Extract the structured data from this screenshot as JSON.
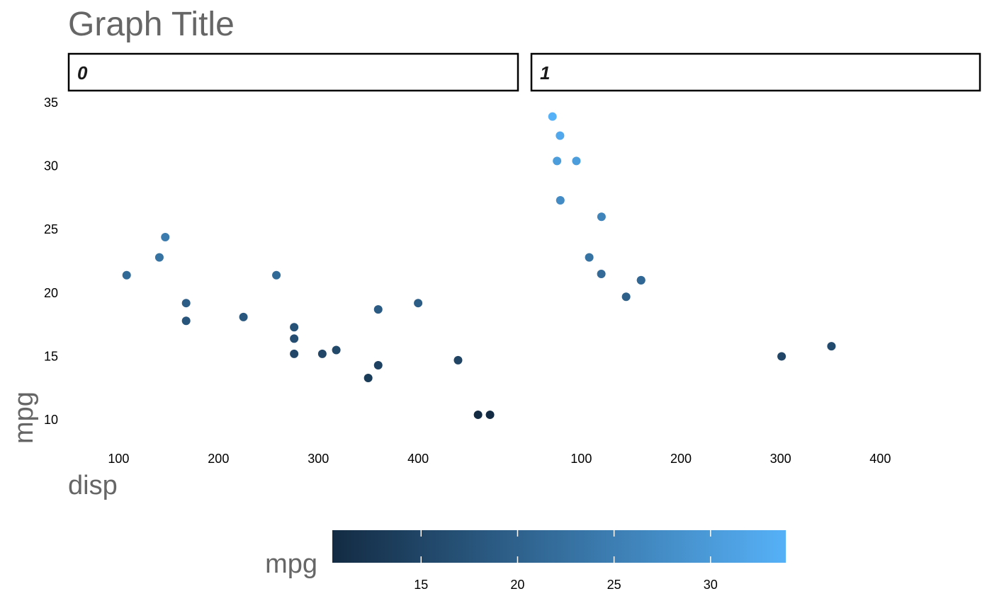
{
  "chart_data": {
    "type": "scatter",
    "title": "Graph Title",
    "xlabel": "disp",
    "ylabel": "mpg",
    "facet_labels": [
      "0",
      "1"
    ],
    "xlim": [
      50,
      500
    ],
    "ylim": [
      8.5,
      35.5
    ],
    "x_ticks": [
      100,
      200,
      300,
      400
    ],
    "y_ticks": [
      10,
      15,
      20,
      25,
      30,
      35
    ],
    "color_scale": {
      "title": "mpg",
      "low": "#132B43",
      "high": "#56B1F7",
      "range": [
        10.4,
        33.9
      ],
      "ticks": [
        15,
        20,
        25,
        30
      ]
    },
    "panels": [
      {
        "facet": "0",
        "points": [
          {
            "x": 108,
            "y": 21.4
          },
          {
            "x": 140.8,
            "y": 22.8
          },
          {
            "x": 146.7,
            "y": 24.4
          },
          {
            "x": 167.6,
            "y": 19.2
          },
          {
            "x": 167.6,
            "y": 17.8
          },
          {
            "x": 225,
            "y": 18.1
          },
          {
            "x": 258,
            "y": 21.4
          },
          {
            "x": 275.8,
            "y": 17.3
          },
          {
            "x": 275.8,
            "y": 16.4
          },
          {
            "x": 275.8,
            "y": 15.2
          },
          {
            "x": 304,
            "y": 15.2
          },
          {
            "x": 318,
            "y": 15.5
          },
          {
            "x": 350,
            "y": 13.3
          },
          {
            "x": 360,
            "y": 18.7
          },
          {
            "x": 360,
            "y": 14.3
          },
          {
            "x": 400,
            "y": 19.2
          },
          {
            "x": 440,
            "y": 14.7
          },
          {
            "x": 460,
            "y": 10.4
          },
          {
            "x": 472,
            "y": 10.4
          }
        ]
      },
      {
        "facet": "1",
        "points": [
          {
            "x": 71.1,
            "y": 33.9
          },
          {
            "x": 75.7,
            "y": 30.4
          },
          {
            "x": 78.7,
            "y": 32.4
          },
          {
            "x": 79,
            "y": 27.3
          },
          {
            "x": 95.1,
            "y": 30.4
          },
          {
            "x": 108,
            "y": 22.8
          },
          {
            "x": 120.1,
            "y": 21.5
          },
          {
            "x": 120.3,
            "y": 26
          },
          {
            "x": 145,
            "y": 19.7
          },
          {
            "x": 160,
            "y": 21
          },
          {
            "x": 160,
            "y": 21
          },
          {
            "x": 301,
            "y": 15
          },
          {
            "x": 351,
            "y": 15.8
          }
        ]
      }
    ]
  }
}
